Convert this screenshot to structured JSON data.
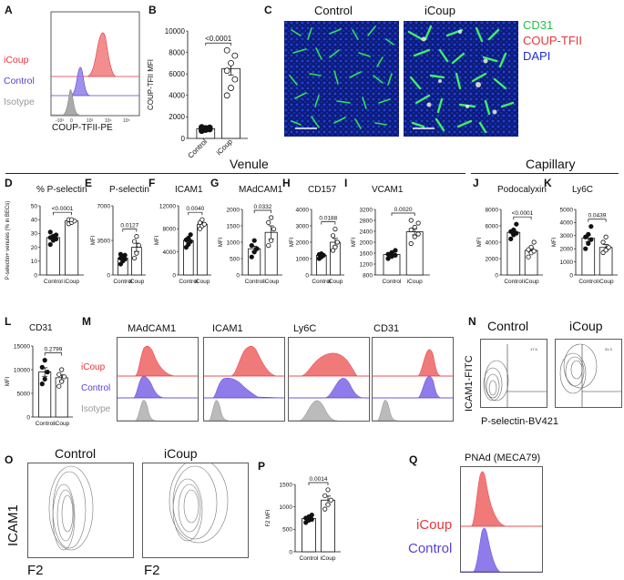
{
  "figure": {
    "panel_letters": [
      "A",
      "B",
      "C",
      "D",
      "E",
      "F",
      "G",
      "H",
      "I",
      "J",
      "K",
      "L",
      "M",
      "N",
      "O",
      "P",
      "Q"
    ],
    "section_venule": "Venule",
    "section_capillary": "Capillary",
    "colors": {
      "icoup": "#e8353a",
      "control": "#5b3fd6",
      "isotype": "#999999",
      "cd31": "#22c24a",
      "coup": "#e8353a",
      "dapi": "#1a2fd0"
    }
  },
  "panelA": {
    "legend": [
      "iCoup",
      "Control",
      "Isotype"
    ],
    "xlabel": "COUP-TFII-PE",
    "ticks": [
      "-10³",
      "0",
      "10³",
      "10⁴",
      "10⁵"
    ]
  },
  "panelC": {
    "left_title": "Control",
    "right_title": "iCoup",
    "legend": [
      "CD31",
      "COUP-TFII",
      "DAPI"
    ]
  },
  "panelM": {
    "columns": [
      "MAdCAM1",
      "ICAM1",
      "Ly6C",
      "CD31"
    ],
    "legend": [
      "iCoup",
      "Control",
      "Isotype"
    ]
  },
  "panelN": {
    "titles": [
      "Control",
      "iCoup"
    ],
    "ylabel": "ICAM1-FITC",
    "xlabel": "P-selectin-BV421",
    "gate_values": [
      "17.5",
      "31.3"
    ]
  },
  "panelO": {
    "titles": [
      "Control",
      "iCoup"
    ],
    "ylabel": "ICAM1",
    "xlabel": "F2"
  },
  "panelQ": {
    "title": "PNAd (MECA79)",
    "legend": [
      "iCoup",
      "Control"
    ]
  },
  "chart_data": [
    {
      "id": "B",
      "type": "bar",
      "title": "",
      "ylabel": "COUP-TFII MFI",
      "categories": [
        "Control",
        "iCoup"
      ],
      "ylim": [
        0,
        10000
      ],
      "ticks": [
        "0",
        "2000",
        "4000",
        "6000",
        "8000",
        "10000"
      ],
      "values": [
        900,
        6500
      ],
      "points": [
        [
          700,
          800,
          850,
          900,
          950,
          1000,
          1050
        ],
        [
          4000,
          4700,
          5500,
          6300,
          7000,
          7700,
          8200
        ]
      ],
      "errors": [
        100,
        600
      ],
      "pvalue": "<0.0001"
    },
    {
      "id": "D",
      "type": "bar",
      "title": "% P-selectin+",
      "ylabel": "P-selectin+ venules (% in BECs)",
      "categories": [
        "Control",
        "iCoup"
      ],
      "ylim": [
        0,
        50
      ],
      "ticks": [
        "0",
        "10",
        "20",
        "30",
        "40",
        "50"
      ],
      "values": [
        27,
        39
      ],
      "points": [
        [
          22,
          25,
          26,
          27,
          28,
          29,
          31
        ],
        [
          37,
          38,
          39,
          40,
          40
        ]
      ],
      "errors": [
        1.2,
        0.7
      ],
      "pvalue": "<0.0001"
    },
    {
      "id": "E",
      "type": "bar",
      "title": "P-selectin",
      "ylabel": "MFI",
      "categories": [
        "Control",
        "iCoup"
      ],
      "ylim": [
        0,
        7000
      ],
      "ticks": [
        "0",
        "3500",
        "7000"
      ],
      "values": [
        1700,
        2800
      ],
      "points": [
        [
          1100,
          1400,
          1600,
          1700,
          1900,
          2000,
          2100
        ],
        [
          1700,
          2200,
          3000,
          3400,
          3900
        ]
      ],
      "errors": [
        140,
        420
      ],
      "pvalue": "0.0127"
    },
    {
      "id": "F",
      "type": "bar",
      "title": "ICAM1",
      "ylabel": "MFI",
      "categories": [
        "Control",
        "iCoup"
      ],
      "ylim": [
        0,
        12000
      ],
      "ticks": [
        "0",
        "4000",
        "8000",
        "12000"
      ],
      "values": [
        6000,
        8800
      ],
      "points": [
        [
          4800,
          5300,
          5800,
          6100,
          6400,
          7000
        ],
        [
          8000,
          8500,
          8800,
          9100,
          9600
        ]
      ],
      "errors": [
        330,
        300
      ],
      "pvalue": "0.0040"
    },
    {
      "id": "G",
      "type": "bar",
      "title": "MAdCAM1",
      "ylabel": "MFI",
      "categories": [
        "Control",
        "iCoup"
      ],
      "ylim": [
        0,
        2000
      ],
      "ticks": [
        "0",
        "500",
        "1000",
        "1500",
        "2000"
      ],
      "values": [
        800,
        1300
      ],
      "points": [
        [
          550,
          700,
          800,
          900,
          1050
        ],
        [
          900,
          1050,
          1400,
          1600,
          1750
        ]
      ],
      "errors": [
        80,
        200
      ],
      "pvalue": "0.0332"
    },
    {
      "id": "H",
      "type": "bar",
      "title": "CD157",
      "ylabel": "MFI",
      "categories": [
        "Control",
        "iCoup"
      ],
      "ylim": [
        0,
        4000
      ],
      "ticks": [
        "0",
        "1000",
        "2000",
        "3000",
        "4000"
      ],
      "values": [
        1200,
        2000
      ],
      "points": [
        [
          1000,
          1100,
          1200,
          1250,
          1300
        ],
        [
          1500,
          1700,
          2000,
          2400,
          2800
        ]
      ],
      "errors": [
        60,
        230
      ],
      "pvalue": "0.0188"
    },
    {
      "id": "I",
      "type": "bar",
      "title": "VCAM1",
      "ylabel": "MFI",
      "categories": [
        "Control",
        "iCoup"
      ],
      "ylim": [
        800,
        3200
      ],
      "ticks": [
        "800",
        "1200",
        "1600",
        "2000",
        "2400",
        "2800",
        "3200"
      ],
      "values": [
        1550,
        2380
      ],
      "points": [
        [
          1400,
          1480,
          1520,
          1560,
          1620,
          1700
        ],
        [
          1950,
          2200,
          2300,
          2450,
          2550,
          2700,
          2800
        ]
      ],
      "errors": [
        50,
        110
      ],
      "pvalue": "0.0020"
    },
    {
      "id": "J",
      "type": "bar",
      "title": "Podocalyxin",
      "ylabel": "MFI",
      "categories": [
        "Control",
        "iCoup"
      ],
      "ylim": [
        0,
        8000
      ],
      "ticks": [
        "0",
        "2000",
        "4000",
        "6000",
        "8000"
      ],
      "values": [
        5200,
        3000
      ],
      "points": [
        [
          4400,
          4900,
          5100,
          5300,
          5500,
          6200
        ],
        [
          2200,
          2700,
          2900,
          3100,
          3400,
          4000
        ]
      ],
      "errors": [
        260,
        250
      ],
      "pvalue": "<0.0001"
    },
    {
      "id": "K",
      "type": "bar",
      "title": "Ly6C",
      "ylabel": "MFI",
      "categories": [
        "Control",
        "iCoup"
      ],
      "ylim": [
        0,
        5000
      ],
      "ticks": [
        "0",
        "1000",
        "2000",
        "3000",
        "4000",
        "5000"
      ],
      "values": [
        2800,
        2100
      ],
      "points": [
        [
          2000,
          2400,
          2700,
          2900,
          3100,
          3700
        ],
        [
          1700,
          1900,
          2100,
          2500,
          2900
        ]
      ],
      "errors": [
        250,
        220
      ],
      "pvalue": "0.0439"
    },
    {
      "id": "L",
      "type": "bar",
      "title": "CD31",
      "ylabel": "MFI",
      "categories": [
        "Control",
        "iCoup"
      ],
      "ylim": [
        0,
        15000
      ],
      "ticks": [
        "0",
        "5000",
        "10000",
        "15000"
      ],
      "values": [
        9500,
        8300
      ],
      "points": [
        [
          7000,
          8000,
          9500,
          10500,
          12000
        ],
        [
          6500,
          7500,
          8500,
          9000,
          10000
        ]
      ],
      "errors": [
        900,
        600
      ],
      "pvalue": "0.2799"
    },
    {
      "id": "P",
      "type": "bar",
      "title": "",
      "ylabel": "F2 MFI",
      "categories": [
        "Control",
        "iCoup"
      ],
      "ylim": [
        0,
        1500
      ],
      "ticks": [
        "0",
        "500",
        "1000",
        "1500"
      ],
      "values": [
        740,
        1150
      ],
      "points": [
        [
          650,
          700,
          720,
          750,
          780,
          820
        ],
        [
          950,
          1050,
          1150,
          1250,
          1380
        ]
      ],
      "errors": [
        30,
        90
      ],
      "pvalue": "0.0014"
    }
  ]
}
